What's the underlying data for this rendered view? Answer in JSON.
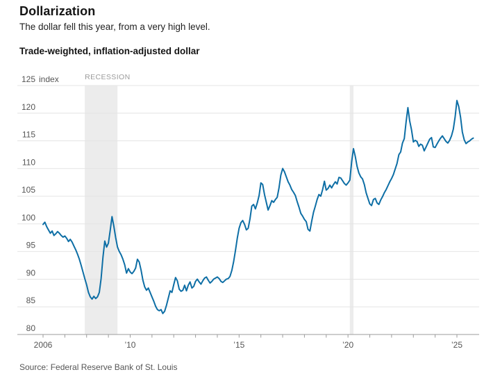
{
  "header": {
    "title": "Dollarization",
    "subtitle": "The dollar fell this year, from a very high level."
  },
  "chart": {
    "title": "Trade-weighted, inflation-adjusted dollar",
    "source": "Source: Federal Reserve Bank of St. Louis"
  },
  "chart_data": {
    "type": "line",
    "title": "Trade-weighted, inflation-adjusted dollar",
    "unit_label": "index",
    "recession_label": "RECESSION",
    "frequency": "monthly",
    "series_start": "2006-01",
    "series_end": "2025-10",
    "ylim": [
      80,
      125
    ],
    "y_ticks": [
      80,
      85,
      90,
      95,
      100,
      105,
      110,
      115,
      120,
      125
    ],
    "x_tick_years": [
      2006,
      2007,
      2008,
      2009,
      2010,
      2011,
      2012,
      2013,
      2014,
      2015,
      2016,
      2017,
      2018,
      2019,
      2020,
      2021,
      2022,
      2023,
      2024,
      2025
    ],
    "x_tick_labels": {
      "2006": "2006",
      "2010": "’10",
      "2015": "’15",
      "2020": "’20",
      "2025": "’25"
    },
    "recession_bands": [
      {
        "start": "2007-12",
        "end": "2009-06"
      },
      {
        "start": "2020-02",
        "end": "2020-04"
      }
    ],
    "values": [
      99.9,
      100.3,
      99.5,
      98.9,
      98.3,
      98.7,
      97.9,
      98.2,
      98.6,
      98.3,
      97.9,
      97.6,
      97.8,
      97.4,
      96.8,
      97.2,
      96.7,
      96.0,
      95.3,
      94.5,
      93.6,
      92.5,
      91.3,
      90.1,
      89.0,
      87.6,
      86.8,
      86.4,
      86.9,
      86.5,
      86.8,
      87.6,
      90.1,
      94.0,
      96.9,
      95.8,
      96.5,
      98.8,
      101.3,
      99.6,
      97.5,
      95.8,
      95.0,
      94.4,
      93.6,
      92.6,
      91.1,
      91.9,
      91.3,
      91.0,
      91.4,
      92.0,
      93.6,
      93.1,
      91.6,
      89.8,
      88.6,
      88.0,
      88.4,
      87.6,
      86.8,
      86.0,
      85.1,
      84.5,
      84.3,
      84.5,
      83.8,
      84.2,
      85.3,
      86.6,
      87.9,
      87.6,
      89.0,
      90.3,
      89.7,
      88.2,
      87.8,
      88.0,
      88.9,
      87.9,
      88.9,
      89.5,
      88.4,
      88.7,
      89.6,
      90.0,
      89.5,
      89.1,
      89.7,
      90.2,
      90.4,
      89.8,
      89.3,
      89.6,
      90.0,
      90.2,
      90.4,
      90.1,
      89.6,
      89.4,
      89.7,
      90.0,
      90.1,
      90.5,
      91.6,
      93.2,
      95.2,
      97.4,
      99.2,
      100.2,
      100.6,
      99.9,
      98.9,
      99.2,
      100.9,
      103.2,
      103.5,
      102.7,
      103.8,
      105.1,
      107.4,
      107.1,
      105.3,
      103.9,
      102.5,
      103.3,
      104.2,
      103.9,
      104.4,
      104.8,
      106.5,
      108.8,
      110.0,
      109.4,
      108.5,
      107.6,
      107.0,
      106.2,
      105.7,
      105.1,
      104.0,
      103.0,
      101.9,
      101.4,
      100.8,
      100.4,
      99.0,
      98.7,
      100.5,
      102.1,
      103.2,
      104.4,
      105.3,
      105.0,
      106.2,
      107.7,
      106.1,
      106.4,
      107.0,
      106.5,
      107.1,
      107.6,
      107.2,
      108.4,
      108.3,
      107.8,
      107.3,
      107.0,
      107.4,
      107.9,
      111.2,
      113.6,
      112.2,
      110.4,
      109.2,
      108.5,
      108.1,
      107.1,
      105.6,
      104.6,
      103.6,
      103.3,
      104.4,
      104.6,
      103.8,
      103.5,
      104.3,
      104.9,
      105.6,
      106.2,
      106.9,
      107.6,
      108.2,
      108.9,
      109.9,
      110.9,
      112.5,
      113.0,
      114.6,
      115.4,
      118.4,
      121.0,
      118.6,
      117.0,
      114.8,
      115.1,
      114.9,
      114.0,
      114.4,
      114.2,
      113.2,
      113.9,
      114.6,
      115.3,
      115.6,
      113.9,
      113.8,
      114.4,
      115.0,
      115.5,
      115.9,
      115.4,
      114.9,
      114.6,
      115.1,
      115.9,
      117.1,
      119.3,
      122.3,
      121.2,
      119.3,
      116.6,
      115.2,
      114.5,
      114.8,
      115.0,
      115.3,
      115.5
    ],
    "colors": {
      "line": "#0d6ea5",
      "band": "#ececec",
      "grid": "#e4e4e4",
      "axis": "#9b9b9b",
      "tick_label": "#555555",
      "recession_label": "#9a9a9a"
    },
    "legend_position": "none",
    "grid": true
  }
}
